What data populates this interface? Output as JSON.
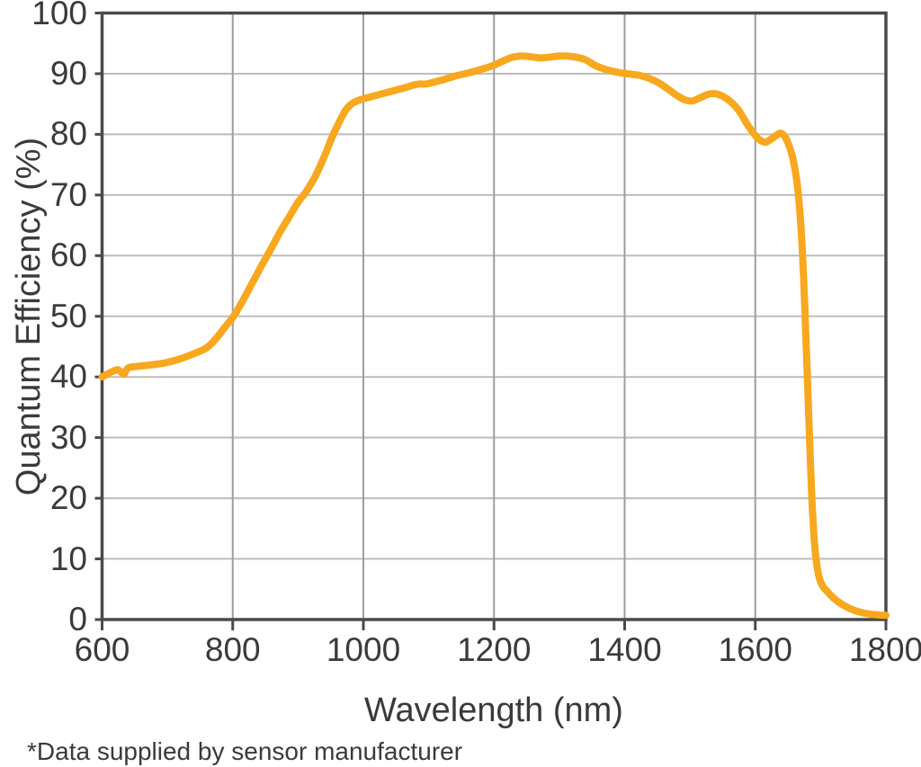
{
  "chart_data": {
    "type": "line",
    "title": "",
    "xlabel": "Wavelength (nm)",
    "ylabel": "Quantum Efficiency (%)",
    "xlim": [
      600,
      1800
    ],
    "ylim": [
      0,
      100
    ],
    "x_ticks": [
      600,
      800,
      1000,
      1200,
      1400,
      1600,
      1800
    ],
    "y_ticks": [
      0,
      10,
      20,
      30,
      40,
      50,
      60,
      70,
      80,
      90,
      100
    ],
    "grid": true,
    "legend": "none",
    "footnote": "*Data supplied by sensor manufacturer",
    "colors": {
      "curve": "#F8A81E",
      "axis_border": "#4A4A4A",
      "grid_horizontal": "#BDBDBD",
      "grid_vertical": "#9E9E9E",
      "text": "#3A3A3A",
      "background": "#FFFFFF"
    },
    "series": [
      {
        "name": "Quantum Efficiency",
        "color": "#F8A81E",
        "points": [
          [
            600,
            40.0
          ],
          [
            610,
            40.6
          ],
          [
            618,
            41.0
          ],
          [
            624,
            41.2
          ],
          [
            630,
            40.7
          ],
          [
            634,
            40.5
          ],
          [
            640,
            41.5
          ],
          [
            652,
            41.7
          ],
          [
            668,
            41.9
          ],
          [
            684,
            42.1
          ],
          [
            700,
            42.4
          ],
          [
            720,
            43.0
          ],
          [
            740,
            43.8
          ],
          [
            760,
            44.8
          ],
          [
            775,
            46.4
          ],
          [
            788,
            48.2
          ],
          [
            800,
            49.8
          ],
          [
            815,
            52.5
          ],
          [
            830,
            55.5
          ],
          [
            845,
            58.5
          ],
          [
            858,
            61.0
          ],
          [
            872,
            63.8
          ],
          [
            886,
            66.3
          ],
          [
            900,
            68.8
          ],
          [
            912,
            70.5
          ],
          [
            926,
            73.0
          ],
          [
            940,
            76.3
          ],
          [
            952,
            79.5
          ],
          [
            963,
            82.0
          ],
          [
            973,
            84.0
          ],
          [
            983,
            85.1
          ],
          [
            995,
            85.7
          ],
          [
            1008,
            86.1
          ],
          [
            1022,
            86.5
          ],
          [
            1036,
            86.9
          ],
          [
            1050,
            87.3
          ],
          [
            1064,
            87.7
          ],
          [
            1076,
            88.1
          ],
          [
            1086,
            88.3
          ],
          [
            1096,
            88.3
          ],
          [
            1108,
            88.6
          ],
          [
            1122,
            89.0
          ],
          [
            1140,
            89.6
          ],
          [
            1160,
            90.1
          ],
          [
            1180,
            90.7
          ],
          [
            1200,
            91.4
          ],
          [
            1214,
            92.1
          ],
          [
            1228,
            92.7
          ],
          [
            1242,
            92.9
          ],
          [
            1256,
            92.8
          ],
          [
            1270,
            92.6
          ],
          [
            1284,
            92.7
          ],
          [
            1298,
            92.9
          ],
          [
            1312,
            92.9
          ],
          [
            1326,
            92.7
          ],
          [
            1340,
            92.3
          ],
          [
            1354,
            91.4
          ],
          [
            1368,
            90.8
          ],
          [
            1382,
            90.4
          ],
          [
            1396,
            90.1
          ],
          [
            1410,
            89.9
          ],
          [
            1424,
            89.7
          ],
          [
            1438,
            89.2
          ],
          [
            1452,
            88.5
          ],
          [
            1466,
            87.5
          ],
          [
            1480,
            86.4
          ],
          [
            1492,
            85.7
          ],
          [
            1503,
            85.5
          ],
          [
            1515,
            86.0
          ],
          [
            1528,
            86.6
          ],
          [
            1538,
            86.7
          ],
          [
            1550,
            86.3
          ],
          [
            1562,
            85.4
          ],
          [
            1575,
            83.9
          ],
          [
            1588,
            81.6
          ],
          [
            1600,
            79.8
          ],
          [
            1608,
            79.0
          ],
          [
            1616,
            78.7
          ],
          [
            1624,
            79.2
          ],
          [
            1632,
            79.8
          ],
          [
            1638,
            80.2
          ],
          [
            1644,
            79.8
          ],
          [
            1650,
            78.6
          ],
          [
            1658,
            75.8
          ],
          [
            1665,
            71.0
          ],
          [
            1671,
            63.0
          ],
          [
            1676,
            51.0
          ],
          [
            1680,
            39.0
          ],
          [
            1684,
            27.0
          ],
          [
            1688,
            17.0
          ],
          [
            1693,
            10.0
          ],
          [
            1700,
            6.2
          ],
          [
            1712,
            4.4
          ],
          [
            1726,
            3.0
          ],
          [
            1745,
            1.8
          ],
          [
            1765,
            1.1
          ],
          [
            1785,
            0.8
          ],
          [
            1800,
            0.7
          ]
        ]
      }
    ]
  }
}
